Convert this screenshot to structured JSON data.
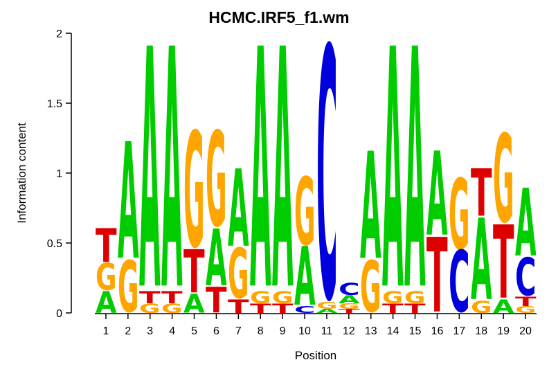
{
  "chart_data": {
    "type": "sequence_logo",
    "title": "HCMC.IRF5_f1.wm",
    "xlabel": "Position",
    "ylabel": "Information content",
    "ylim": [
      0,
      2
    ],
    "ytick_labels": [
      "0",
      "0.5",
      "1",
      "1.5",
      "2"
    ],
    "ytick_values": [
      0,
      0.5,
      1,
      1.5,
      2
    ],
    "letter_colors": {
      "A": "#00CC00",
      "C": "#0000DD",
      "G": "#FFA500",
      "T": "#DD0000"
    },
    "positions": [
      {
        "pos": "1",
        "stack": [
          {
            "letter": "T",
            "height": 0.25
          },
          {
            "letter": "G",
            "height": 0.2
          },
          {
            "letter": "A",
            "height": 0.16
          }
        ]
      },
      {
        "pos": "2",
        "stack": [
          {
            "letter": "A",
            "height": 0.86
          },
          {
            "letter": "G",
            "height": 0.38
          }
        ]
      },
      {
        "pos": "3",
        "stack": [
          {
            "letter": "A",
            "height": 1.77
          },
          {
            "letter": "T",
            "height": 0.09
          },
          {
            "letter": "G",
            "height": 0.07
          }
        ]
      },
      {
        "pos": "4",
        "stack": [
          {
            "letter": "A",
            "height": 1.77
          },
          {
            "letter": "T",
            "height": 0.09
          },
          {
            "letter": "G",
            "height": 0.07
          }
        ]
      },
      {
        "pos": "5",
        "stack": [
          {
            "letter": "G",
            "height": 0.85
          },
          {
            "letter": "T",
            "height": 0.32
          },
          {
            "letter": "A",
            "height": 0.14
          }
        ]
      },
      {
        "pos": "6",
        "stack": [
          {
            "letter": "G",
            "height": 0.7
          },
          {
            "letter": "A",
            "height": 0.42
          },
          {
            "letter": "T",
            "height": 0.19
          }
        ]
      },
      {
        "pos": "7",
        "stack": [
          {
            "letter": "A",
            "height": 0.57
          },
          {
            "letter": "G",
            "height": 0.37
          },
          {
            "letter": "T",
            "height": 0.1
          }
        ]
      },
      {
        "pos": "8",
        "stack": [
          {
            "letter": "A",
            "height": 1.77
          },
          {
            "letter": "G",
            "height": 0.09
          },
          {
            "letter": "T",
            "height": 0.07
          }
        ]
      },
      {
        "pos": "9",
        "stack": [
          {
            "letter": "A",
            "height": 1.77
          },
          {
            "letter": "G",
            "height": 0.09
          },
          {
            "letter": "T",
            "height": 0.07
          }
        ]
      },
      {
        "pos": "10",
        "stack": [
          {
            "letter": "G",
            "height": 0.5
          },
          {
            "letter": "A",
            "height": 0.43
          },
          {
            "letter": "C",
            "height": 0.05
          }
        ]
      },
      {
        "pos": "11",
        "stack": [
          {
            "letter": "C",
            "height": 1.85
          },
          {
            "letter": "G",
            "height": 0.05
          },
          {
            "letter": "A",
            "height": 0.03
          }
        ]
      },
      {
        "pos": "12",
        "stack": [
          {
            "letter": "C",
            "height": 0.09
          },
          {
            "letter": "A",
            "height": 0.06
          },
          {
            "letter": "G",
            "height": 0.04
          },
          {
            "letter": "T",
            "height": 0.03
          }
        ]
      },
      {
        "pos": "13",
        "stack": [
          {
            "letter": "A",
            "height": 0.79
          },
          {
            "letter": "G",
            "height": 0.38
          }
        ]
      },
      {
        "pos": "14",
        "stack": [
          {
            "letter": "A",
            "height": 1.77
          },
          {
            "letter": "G",
            "height": 0.09
          },
          {
            "letter": "T",
            "height": 0.07
          }
        ]
      },
      {
        "pos": "15",
        "stack": [
          {
            "letter": "A",
            "height": 1.77
          },
          {
            "letter": "G",
            "height": 0.09
          },
          {
            "letter": "T",
            "height": 0.07
          }
        ]
      },
      {
        "pos": "16",
        "stack": [
          {
            "letter": "A",
            "height": 0.62
          },
          {
            "letter": "T",
            "height": 0.55
          }
        ]
      },
      {
        "pos": "17",
        "stack": [
          {
            "letter": "G",
            "height": 0.52
          },
          {
            "letter": "C",
            "height": 0.45
          }
        ]
      },
      {
        "pos": "18",
        "stack": [
          {
            "letter": "T",
            "height": 0.35
          },
          {
            "letter": "A",
            "height": 0.6
          },
          {
            "letter": "G",
            "height": 0.09
          }
        ]
      },
      {
        "pos": "19",
        "stack": [
          {
            "letter": "G",
            "height": 0.65
          },
          {
            "letter": "T",
            "height": 0.54
          },
          {
            "letter": "A",
            "height": 0.1
          }
        ]
      },
      {
        "pos": "20",
        "stack": [
          {
            "letter": "A",
            "height": 0.5
          },
          {
            "letter": "C",
            "height": 0.28
          },
          {
            "letter": "T",
            "height": 0.07
          },
          {
            "letter": "G",
            "height": 0.05
          }
        ]
      }
    ],
    "layout": {
      "grid": "off",
      "legend": "none",
      "background": "#ffffff",
      "axis_color": "#000000"
    }
  }
}
